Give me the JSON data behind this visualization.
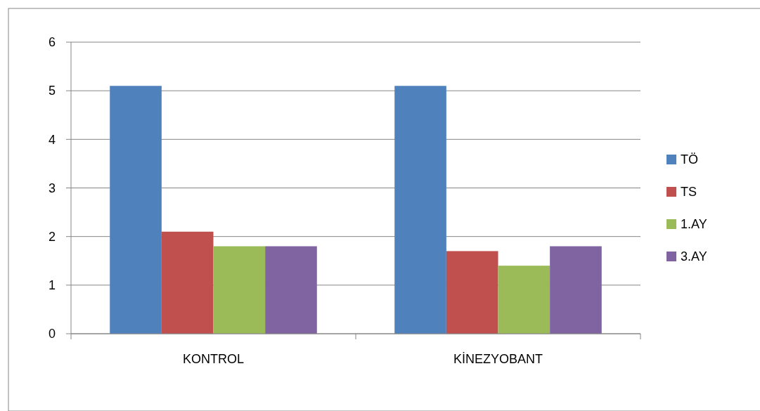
{
  "chart_data": {
    "type": "bar",
    "categories": [
      "KONTROL",
      "KİNEZYOBANT"
    ],
    "series": [
      {
        "name": "TÖ",
        "color": "#4f81bd",
        "values": [
          5.1,
          5.1
        ]
      },
      {
        "name": "TS",
        "color": "#c0504d",
        "values": [
          2.1,
          1.7
        ]
      },
      {
        "name": "1.AY",
        "color": "#9bbb59",
        "values": [
          1.8,
          1.4
        ]
      },
      {
        "name": "3.AY",
        "color": "#8064a2",
        "values": [
          1.8,
          1.8
        ]
      }
    ],
    "ylim": [
      0,
      6
    ],
    "yticks": [
      0,
      1,
      2,
      3,
      4,
      5,
      6
    ],
    "grid": "y",
    "legend": "right"
  }
}
